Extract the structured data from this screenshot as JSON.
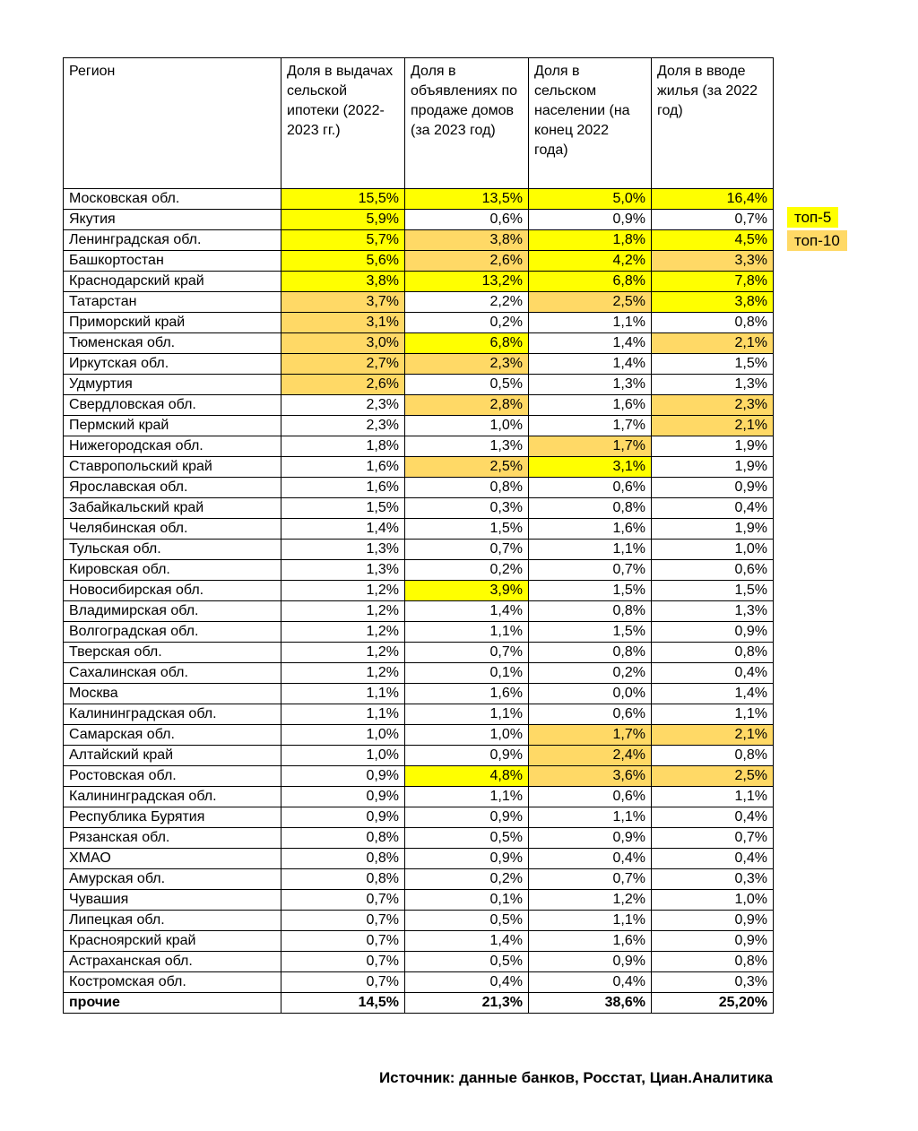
{
  "colors": {
    "top5": "#ffff00",
    "top10": "#ffd966",
    "border": "#000000",
    "background": "#ffffff"
  },
  "legend": {
    "top5_label": "топ-5",
    "top10_label": "топ-10"
  },
  "source_note": "Источник: данные банков, Росстат, Циан.Аналитика",
  "chart_data": {
    "type": "table",
    "title": "",
    "columns": [
      "Регион",
      "Доля в выдачах сельской ипотеки (2022-2023 гг.)",
      "Доля в объявлениях по продаже домов (за 2023 год)",
      "Доля в сельском населении (на конец 2022 года)",
      "Доля в вводе жилья (за 2022 год)"
    ],
    "highlight_meaning": {
      "top5": "топ-5",
      "top10": "топ-10"
    },
    "rows": [
      {
        "region": "Московская обл.",
        "values": [
          "15,5%",
          "13,5%",
          "5,0%",
          "16,4%"
        ],
        "highlights": [
          "top5",
          "top5",
          "top5",
          "top5"
        ],
        "bold": false
      },
      {
        "region": "Якутия",
        "values": [
          "5,9%",
          "0,6%",
          "0,9%",
          "0,7%"
        ],
        "highlights": [
          "top5",
          null,
          null,
          null
        ],
        "bold": false
      },
      {
        "region": "Ленинградская обл.",
        "values": [
          "5,7%",
          "3,8%",
          "1,8%",
          "4,5%"
        ],
        "highlights": [
          "top5",
          "top10",
          "top5",
          "top5"
        ],
        "bold": false
      },
      {
        "region": "Башкортостан",
        "values": [
          "5,6%",
          "2,6%",
          "4,2%",
          "3,3%"
        ],
        "highlights": [
          "top5",
          "top10",
          "top5",
          "top10"
        ],
        "bold": false
      },
      {
        "region": "Краснодарский край",
        "values": [
          "3,8%",
          "13,2%",
          "6,8%",
          "7,8%"
        ],
        "highlights": [
          "top5",
          "top5",
          "top5",
          "top5"
        ],
        "bold": false
      },
      {
        "region": "Татарстан",
        "values": [
          "3,7%",
          "2,2%",
          "2,5%",
          "3,8%"
        ],
        "highlights": [
          "top10",
          null,
          "top10",
          "top5"
        ],
        "bold": false
      },
      {
        "region": "Приморский край",
        "values": [
          "3,1%",
          "0,2%",
          "1,1%",
          "0,8%"
        ],
        "highlights": [
          "top10",
          null,
          null,
          null
        ],
        "bold": false
      },
      {
        "region": "Тюменская обл.",
        "values": [
          "3,0%",
          "6,8%",
          "1,4%",
          "2,1%"
        ],
        "highlights": [
          "top10",
          "top5",
          null,
          "top10"
        ],
        "bold": false
      },
      {
        "region": "Иркутская обл.",
        "values": [
          "2,7%",
          "2,3%",
          "1,4%",
          "1,5%"
        ],
        "highlights": [
          "top10",
          "top10",
          null,
          null
        ],
        "bold": false
      },
      {
        "region": "Удмуртия",
        "values": [
          "2,6%",
          "0,5%",
          "1,3%",
          "1,3%"
        ],
        "highlights": [
          "top10",
          null,
          null,
          null
        ],
        "bold": false
      },
      {
        "region": "Свердловская обл.",
        "values": [
          "2,3%",
          "2,8%",
          "1,6%",
          "2,3%"
        ],
        "highlights": [
          null,
          "top10",
          null,
          "top10"
        ],
        "bold": false
      },
      {
        "region": "Пермский край",
        "values": [
          "2,3%",
          "1,0%",
          "1,7%",
          "2,1%"
        ],
        "highlights": [
          null,
          null,
          null,
          "top10"
        ],
        "bold": false
      },
      {
        "region": "Нижегородская обл.",
        "values": [
          "1,8%",
          "1,3%",
          "1,7%",
          "1,9%"
        ],
        "highlights": [
          null,
          null,
          "top10",
          null
        ],
        "bold": false
      },
      {
        "region": "Ставропольский край",
        "values": [
          "1,6%",
          "2,5%",
          "3,1%",
          "1,9%"
        ],
        "highlights": [
          null,
          "top10",
          "top5",
          null
        ],
        "bold": false
      },
      {
        "region": "Ярославская обл.",
        "values": [
          "1,6%",
          "0,8%",
          "0,6%",
          "0,9%"
        ],
        "highlights": [
          null,
          null,
          null,
          null
        ],
        "bold": false
      },
      {
        "region": "Забайкальский край",
        "values": [
          "1,5%",
          "0,3%",
          "0,8%",
          "0,4%"
        ],
        "highlights": [
          null,
          null,
          null,
          null
        ],
        "bold": false
      },
      {
        "region": "Челябинская обл.",
        "values": [
          "1,4%",
          "1,5%",
          "1,6%",
          "1,9%"
        ],
        "highlights": [
          null,
          null,
          null,
          null
        ],
        "bold": false
      },
      {
        "region": "Тульская обл.",
        "values": [
          "1,3%",
          "0,7%",
          "1,1%",
          "1,0%"
        ],
        "highlights": [
          null,
          null,
          null,
          null
        ],
        "bold": false
      },
      {
        "region": "Кировская обл.",
        "values": [
          "1,3%",
          "0,2%",
          "0,7%",
          "0,6%"
        ],
        "highlights": [
          null,
          null,
          null,
          null
        ],
        "bold": false
      },
      {
        "region": "Новосибирская обл.",
        "values": [
          "1,2%",
          "3,9%",
          "1,5%",
          "1,5%"
        ],
        "highlights": [
          null,
          "top5",
          null,
          null
        ],
        "bold": false
      },
      {
        "region": "Владимирская обл.",
        "values": [
          "1,2%",
          "1,4%",
          "0,8%",
          "1,3%"
        ],
        "highlights": [
          null,
          null,
          null,
          null
        ],
        "bold": false
      },
      {
        "region": "Волгоградская обл.",
        "values": [
          "1,2%",
          "1,1%",
          "1,5%",
          "0,9%"
        ],
        "highlights": [
          null,
          null,
          null,
          null
        ],
        "bold": false
      },
      {
        "region": "Тверская обл.",
        "values": [
          "1,2%",
          "0,7%",
          "0,8%",
          "0,8%"
        ],
        "highlights": [
          null,
          null,
          null,
          null
        ],
        "bold": false
      },
      {
        "region": "Сахалинская обл.",
        "values": [
          "1,2%",
          "0,1%",
          "0,2%",
          "0,4%"
        ],
        "highlights": [
          null,
          null,
          null,
          null
        ],
        "bold": false
      },
      {
        "region": "Москва",
        "values": [
          "1,1%",
          "1,6%",
          "0,0%",
          "1,4%"
        ],
        "highlights": [
          null,
          null,
          null,
          null
        ],
        "bold": false
      },
      {
        "region": "Калининградская обл.",
        "values": [
          "1,1%",
          "1,1%",
          "0,6%",
          "1,1%"
        ],
        "highlights": [
          null,
          null,
          null,
          null
        ],
        "bold": false
      },
      {
        "region": "Самарская обл.",
        "values": [
          "1,0%",
          "1,0%",
          "1,7%",
          "2,1%"
        ],
        "highlights": [
          null,
          null,
          "top10",
          "top10"
        ],
        "bold": false
      },
      {
        "region": "Алтайский край",
        "values": [
          "1,0%",
          "0,9%",
          "2,4%",
          "0,8%"
        ],
        "highlights": [
          null,
          null,
          "top10",
          null
        ],
        "bold": false
      },
      {
        "region": "Ростовская обл.",
        "values": [
          "0,9%",
          "4,8%",
          "3,6%",
          "2,5%"
        ],
        "highlights": [
          null,
          "top5",
          "top10",
          "top10"
        ],
        "bold": false
      },
      {
        "region": "Калининградская обл.",
        "values": [
          "0,9%",
          "1,1%",
          "0,6%",
          "1,1%"
        ],
        "highlights": [
          null,
          null,
          null,
          null
        ],
        "bold": false
      },
      {
        "region": "Республика Бурятия",
        "values": [
          "0,9%",
          "0,9%",
          "1,1%",
          "0,4%"
        ],
        "highlights": [
          null,
          null,
          null,
          null
        ],
        "bold": false
      },
      {
        "region": "Рязанская обл.",
        "values": [
          "0,8%",
          "0,5%",
          "0,9%",
          "0,7%"
        ],
        "highlights": [
          null,
          null,
          null,
          null
        ],
        "bold": false
      },
      {
        "region": "ХМАО",
        "values": [
          "0,8%",
          "0,9%",
          "0,4%",
          "0,4%"
        ],
        "highlights": [
          null,
          null,
          null,
          null
        ],
        "bold": false
      },
      {
        "region": "Амурская обл.",
        "values": [
          "0,8%",
          "0,2%",
          "0,7%",
          "0,3%"
        ],
        "highlights": [
          null,
          null,
          null,
          null
        ],
        "bold": false
      },
      {
        "region": "Чувашия",
        "values": [
          "0,7%",
          "0,1%",
          "1,2%",
          "1,0%"
        ],
        "highlights": [
          null,
          null,
          null,
          null
        ],
        "bold": false
      },
      {
        "region": "Липецкая обл.",
        "values": [
          "0,7%",
          "0,5%",
          "1,1%",
          "0,9%"
        ],
        "highlights": [
          null,
          null,
          null,
          null
        ],
        "bold": false
      },
      {
        "region": "Красноярский край",
        "values": [
          "0,7%",
          "1,4%",
          "1,6%",
          "0,9%"
        ],
        "highlights": [
          null,
          null,
          null,
          null
        ],
        "bold": false
      },
      {
        "region": "Астраханская обл.",
        "values": [
          "0,7%",
          "0,5%",
          "0,9%",
          "0,8%"
        ],
        "highlights": [
          null,
          null,
          null,
          null
        ],
        "bold": false
      },
      {
        "region": "Костромская обл.",
        "values": [
          "0,7%",
          "0,4%",
          "0,4%",
          "0,3%"
        ],
        "highlights": [
          null,
          null,
          null,
          null
        ],
        "bold": false
      },
      {
        "region": "прочие",
        "values": [
          "14,5%",
          "21,3%",
          "38,6%",
          "25,20%"
        ],
        "highlights": [
          null,
          null,
          null,
          null
        ],
        "bold": true
      }
    ]
  }
}
